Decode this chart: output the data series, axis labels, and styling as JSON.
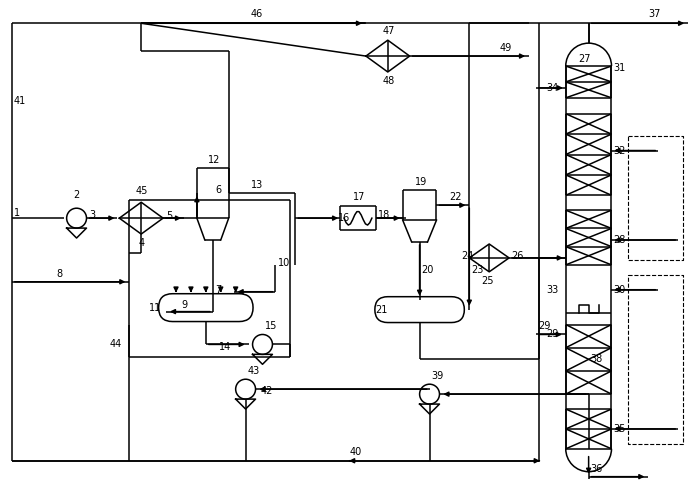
{
  "figsize": [
    6.99,
    4.86
  ],
  "dpi": 100,
  "lw": 1.1
}
